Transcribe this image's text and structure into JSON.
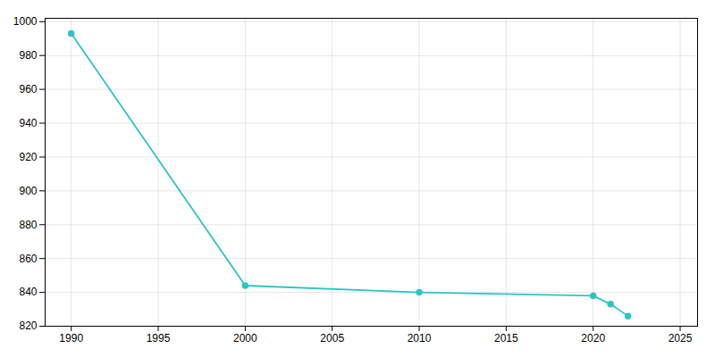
{
  "chart_data": {
    "type": "line",
    "x": [
      1990,
      2000,
      2010,
      2020,
      2021,
      2022
    ],
    "values": [
      993,
      844,
      840,
      838,
      833,
      826
    ],
    "color": "#2EC4C4",
    "marker": "circle",
    "xlim": [
      1988.5,
      2026
    ],
    "ylim": [
      820,
      1002
    ],
    "xticks": [
      1990,
      1995,
      2000,
      2005,
      2010,
      2015,
      2020,
      2025
    ],
    "yticks": [
      820,
      840,
      860,
      880,
      900,
      920,
      940,
      960,
      980,
      1000
    ],
    "grid": true
  }
}
